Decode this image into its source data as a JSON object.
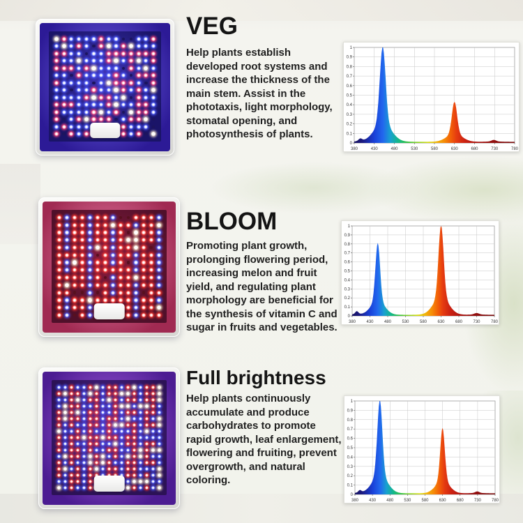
{
  "page": {
    "background_color": "#f2f3ed",
    "description": "LED grow light product infographic with three lighting modes"
  },
  "sections": [
    {
      "id": "veg",
      "heading": "VEG",
      "body": "Help plants establish developed root systems and increase the thickness of the main stem. Assist in the phototaxis, light morphology, stomatal opening, and photosynthesis of plants.",
      "panel": {
        "image_alt": "Grow light panel in VEG mode with blue and pink-red LEDs lit",
        "pattern": "veg",
        "grid": 14,
        "glow_inner": "#7a6cf0",
        "glow_outer": "#2c1a96",
        "board_inner": "#4034b8",
        "board_outer": "#1a1468"
      }
    },
    {
      "id": "bloom",
      "heading": "BLOOM",
      "body": "Promoting plant growth, prolonging flowering period, increasing melon and fruit yield, and regulating plant morphology are beneficial for the synthesis of vitamin C and sugar in fruits and vegetables.",
      "panel": {
        "image_alt": "Grow light panel in BLOOM mode with red-dominant LEDs and blue columns lit",
        "pattern": "bloom",
        "grid": 14,
        "glow_inner": "#f08ab2",
        "glow_outer": "#a02a52",
        "board_inner": "#8c1c3e",
        "board_outer": "#50102a"
      }
    },
    {
      "id": "full",
      "heading": "Full brightness",
      "body": "Help plants continuously accumulate and produce carbohydrates to promote rapid growth, leaf enlargement, flowering and fruiting, prevent overgrowth, and natural coloring.",
      "panel": {
        "image_alt": "Grow light panel at full brightness with all red, blue and white LEDs lit",
        "pattern": "full",
        "grid": 17,
        "glow_inner": "#b468ea",
        "glow_outer": "#4c1c92",
        "board_inner": "#5c2ca4",
        "board_outer": "#2c1256"
      }
    }
  ],
  "spectrum_gradient": [
    {
      "wl": 380,
      "color": "#181460"
    },
    {
      "wl": 400,
      "color": "#1c1a80"
    },
    {
      "wl": 430,
      "color": "#1940d8"
    },
    {
      "wl": 452,
      "color": "#2268ee"
    },
    {
      "wl": 470,
      "color": "#18a0d0"
    },
    {
      "wl": 490,
      "color": "#14b888"
    },
    {
      "wl": 515,
      "color": "#3cc43c"
    },
    {
      "wl": 540,
      "color": "#90d41e"
    },
    {
      "wl": 565,
      "color": "#d8dc10"
    },
    {
      "wl": 585,
      "color": "#f0b60c"
    },
    {
      "wl": 605,
      "color": "#f68a08"
    },
    {
      "wl": 620,
      "color": "#f26208"
    },
    {
      "wl": 635,
      "color": "#e63c10"
    },
    {
      "wl": 655,
      "color": "#cc2212"
    },
    {
      "wl": 690,
      "color": "#a81410"
    },
    {
      "wl": 730,
      "color": "#901010"
    },
    {
      "wl": 780,
      "color": "#7a0e0e"
    }
  ],
  "chart_data": [
    {
      "type": "area",
      "name": "veg-spectrum",
      "title": "",
      "xlabel": "",
      "ylabel": "",
      "xlim": [
        380,
        780
      ],
      "ylim": [
        0,
        1
      ],
      "x_ticks": [
        380,
        430,
        480,
        530,
        580,
        630,
        680,
        730,
        780
      ],
      "y_ticks": [
        0,
        0.1,
        0.2,
        0.3,
        0.4,
        0.5,
        0.6,
        0.7,
        0.8,
        0.9,
        1
      ],
      "grid": true,
      "baseline": 0.012,
      "peaks": [
        {
          "center": 395,
          "amplitude": 0.03,
          "width": 6
        },
        {
          "center": 451,
          "amplitude": 1.0,
          "width": 10
        },
        {
          "center": 630,
          "amplitude": 0.42,
          "width": 9
        },
        {
          "center": 728,
          "amplitude": 0.02,
          "width": 8
        }
      ]
    },
    {
      "type": "area",
      "name": "bloom-spectrum",
      "title": "",
      "xlabel": "",
      "ylabel": "",
      "xlim": [
        380,
        780
      ],
      "ylim": [
        0,
        1
      ],
      "x_ticks": [
        380,
        430,
        480,
        530,
        580,
        630,
        680,
        730,
        780
      ],
      "y_ticks": [
        0,
        0.1,
        0.2,
        0.3,
        0.4,
        0.5,
        0.6,
        0.7,
        0.8,
        0.9,
        1
      ],
      "grid": true,
      "baseline": 0.012,
      "peaks": [
        {
          "center": 393,
          "amplitude": 0.04,
          "width": 6
        },
        {
          "center": 452,
          "amplitude": 0.8,
          "width": 9
        },
        {
          "center": 630,
          "amplitude": 1.0,
          "width": 10
        },
        {
          "center": 730,
          "amplitude": 0.02,
          "width": 9
        }
      ]
    },
    {
      "type": "area",
      "name": "full-brightness-spectrum",
      "title": "",
      "xlabel": "",
      "ylabel": "",
      "xlim": [
        380,
        780
      ],
      "ylim": [
        0,
        1
      ],
      "x_ticks": [
        380,
        430,
        480,
        530,
        580,
        630,
        680,
        730,
        780
      ],
      "y_ticks": [
        0,
        0.1,
        0.2,
        0.3,
        0.4,
        0.5,
        0.6,
        0.7,
        0.8,
        0.9,
        1
      ],
      "grid": true,
      "baseline": 0.012,
      "peaks": [
        {
          "center": 394,
          "amplitude": 0.03,
          "width": 6
        },
        {
          "center": 451,
          "amplitude": 1.0,
          "width": 10
        },
        {
          "center": 630,
          "amplitude": 0.7,
          "width": 9
        },
        {
          "center": 729,
          "amplitude": 0.02,
          "width": 8
        }
      ]
    }
  ]
}
